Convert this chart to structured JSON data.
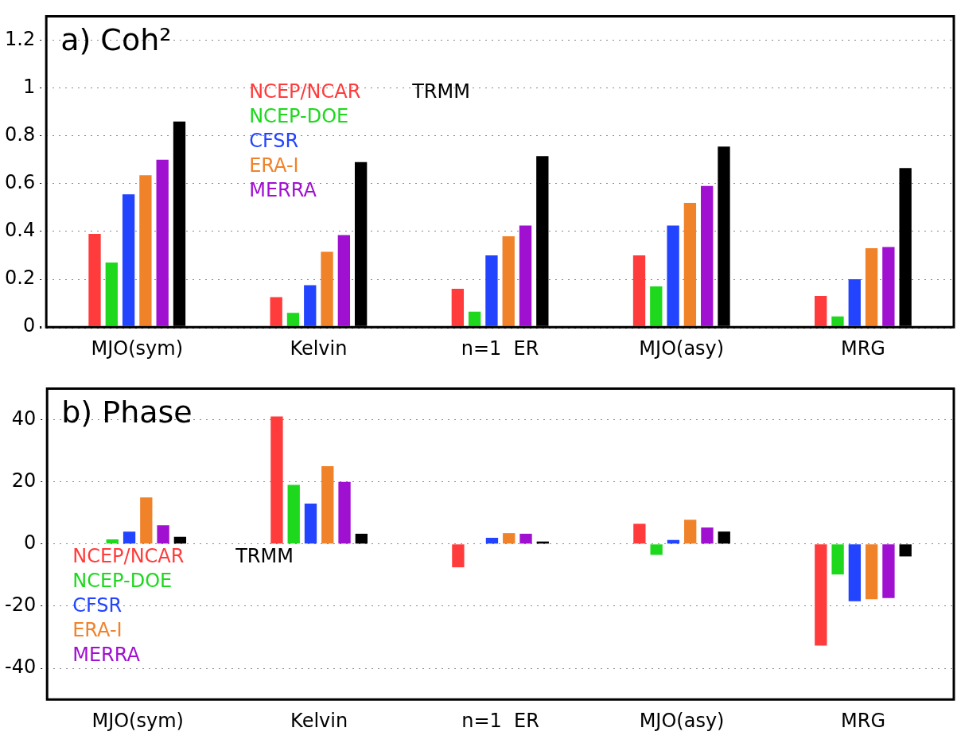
{
  "chart_data": [
    {
      "type": "bar",
      "title": "a) Coh²",
      "categories": [
        "MJO(sym)",
        "Kelvin",
        "n=1  ER",
        "MJO(asy)",
        "MRG"
      ],
      "series": [
        {
          "name": "NCEP/NCAR",
          "color": "#ff3b3b",
          "values": [
            0.39,
            0.125,
            0.16,
            0.3,
            0.13
          ]
        },
        {
          "name": "NCEP-DOE",
          "color": "#1ed81e",
          "values": [
            0.27,
            0.06,
            0.065,
            0.17,
            0.045
          ]
        },
        {
          "name": "CFSR",
          "color": "#2244ff",
          "values": [
            0.555,
            0.175,
            0.3,
            0.425,
            0.2
          ]
        },
        {
          "name": "ERA-I",
          "color": "#f0822a",
          "values": [
            0.635,
            0.315,
            0.38,
            0.52,
            0.33
          ]
        },
        {
          "name": "MERRA",
          "color": "#a010d0",
          "values": [
            0.7,
            0.385,
            0.425,
            0.59,
            0.335
          ]
        },
        {
          "name": "TRMM",
          "color": "#000000",
          "values": [
            0.86,
            0.69,
            0.715,
            0.755,
            0.665
          ]
        }
      ],
      "ylim": [
        0,
        1.3
      ],
      "yticks": [
        0,
        0.2,
        0.4,
        0.6,
        0.8,
        1,
        1.2
      ],
      "grid": "y",
      "legend": "top left"
    },
    {
      "type": "bar",
      "title": "b) Phase",
      "categories": [
        "MJO(sym)",
        "Kelvin",
        "n=1  ER",
        "MJO(asy)",
        "MRG"
      ],
      "series": [
        {
          "name": "NCEP/NCAR",
          "color": "#ff3b3b",
          "values": [
            0,
            41,
            -7.5,
            6.5,
            -32.7
          ]
        },
        {
          "name": "NCEP-DOE",
          "color": "#1ed81e",
          "values": [
            1.5,
            19,
            0,
            -3.5,
            -9.8
          ]
        },
        {
          "name": "CFSR",
          "color": "#2244ff",
          "values": [
            4,
            13,
            2,
            1.3,
            -18.4
          ]
        },
        {
          "name": "ERA-I",
          "color": "#f0822a",
          "values": [
            15,
            25,
            3.5,
            7.8,
            -17.8
          ]
        },
        {
          "name": "MERRA",
          "color": "#a010d0",
          "values": [
            6,
            20,
            3.3,
            5.3,
            -17.4
          ]
        },
        {
          "name": "TRMM",
          "color": "#000000",
          "values": [
            2.3,
            3.3,
            0.8,
            4,
            -4
          ]
        }
      ],
      "ylim": [
        -50,
        50
      ],
      "yticks": [
        -40,
        -20,
        0,
        20,
        40
      ],
      "grid": "y",
      "legend": "bottom left"
    }
  ]
}
